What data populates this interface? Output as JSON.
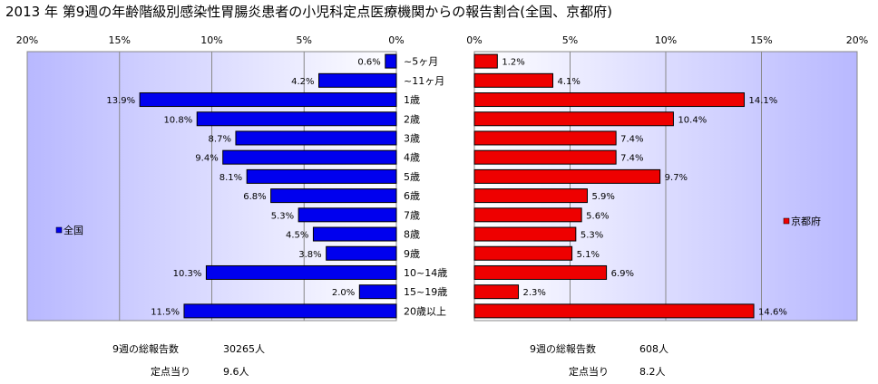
{
  "chart_data": {
    "type": "bar",
    "title": "2013 年 第9週の年齢階級別感染性胃腸炎患者の小児科定点医療機関からの報告割合(全国、京都府)",
    "categories": [
      "~5ヶ月",
      "~11ヶ月",
      "1歳",
      "2歳",
      "3歳",
      "4歳",
      "5歳",
      "6歳",
      "7歳",
      "8歳",
      "9歳",
      "10~14歳",
      "15~19歳",
      "20歳以上"
    ],
    "series": [
      {
        "name": "全国",
        "color": "#0000ee",
        "values": [
          0.6,
          4.2,
          13.9,
          10.8,
          8.7,
          9.4,
          8.1,
          6.8,
          5.3,
          4.5,
          3.8,
          10.3,
          2.0,
          11.5
        ],
        "labels": [
          "0.6%",
          "4.2%",
          "13.9%",
          "10.8%",
          "8.7%",
          "9.4%",
          "8.1%",
          "6.8%",
          "5.3%",
          "4.5%",
          "3.8%",
          "10.3%",
          "2.0%",
          "11.5%"
        ]
      },
      {
        "name": "京都府",
        "color": "#ee0000",
        "values": [
          1.2,
          4.1,
          14.1,
          10.4,
          7.4,
          7.4,
          9.7,
          5.9,
          5.6,
          5.3,
          5.1,
          6.9,
          2.3,
          14.6
        ],
        "labels": [
          "1.2%",
          "4.1%",
          "14.1%",
          "10.4%",
          "7.4%",
          "7.4%",
          "9.7%",
          "5.9%",
          "5.6%",
          "5.3%",
          "5.1%",
          "6.9%",
          "2.3%",
          "14.6%"
        ]
      }
    ],
    "axis": {
      "range": [
        0,
        20
      ],
      "ticks": [
        0,
        5,
        10,
        15,
        20
      ],
      "left_tick_labels": [
        "20%",
        "15%",
        "10%",
        "5%",
        "0%"
      ],
      "right_tick_labels": [
        "0%",
        "5%",
        "10%",
        "15%",
        "20%"
      ]
    },
    "grid": true,
    "legend": {
      "left": "全国",
      "right": "京都府"
    }
  },
  "summary": {
    "left": {
      "total_label": "9週の総報告数",
      "total_value": "30265人",
      "per_label": "定点当り",
      "per_value": "9.6人"
    },
    "right": {
      "total_label": "9週の総報告数",
      "total_value": "608人",
      "per_label": "定点当り",
      "per_value": "8.2人"
    }
  },
  "colors": {
    "plot_bg_edge": "#ffffff",
    "plot_bg_center": "#b8b8ff",
    "grid": "#888888",
    "bar_border": "#000000"
  }
}
